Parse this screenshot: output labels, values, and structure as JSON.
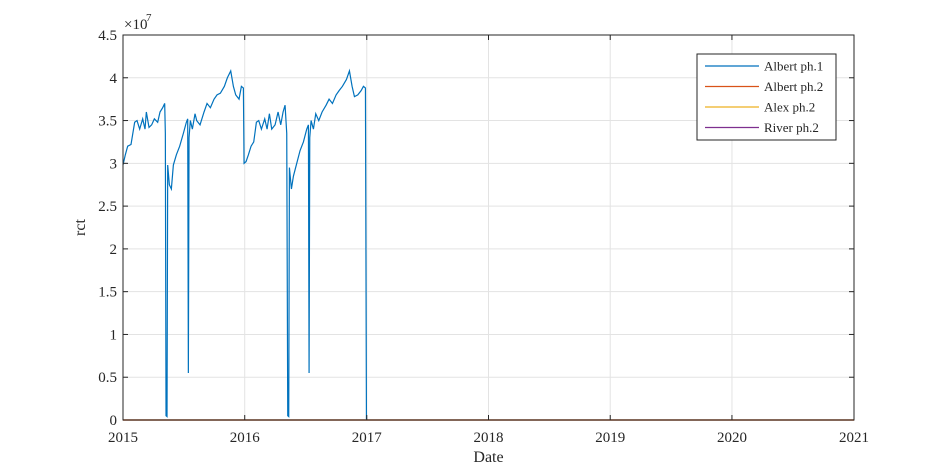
{
  "chart_data": {
    "type": "line",
    "xlabel": "Date",
    "ylabel": "rct",
    "y_exponent_label": "×10",
    "y_exponent_power": "7",
    "xlim": [
      "2015-01-01",
      "2021-01-01"
    ],
    "ylim": [
      0,
      45000000
    ],
    "x_ticks": [
      "2015",
      "2016",
      "2017",
      "2018",
      "2019",
      "2020",
      "2021"
    ],
    "y_ticks": [
      0,
      0.5,
      1,
      1.5,
      2,
      2.5,
      3,
      3.5,
      4,
      4.5
    ],
    "y_tick_labels": [
      "0",
      "0.5",
      "1",
      "1.5",
      "2",
      "2.5",
      "3",
      "3.5",
      "4",
      "4.5"
    ],
    "grid": true,
    "legend_position": "top-right",
    "series": [
      {
        "name": "Albert ph.1",
        "color": "#0072BD",
        "points": [
          [
            "2015-01-01",
            29800000
          ],
          [
            "2015-01-08",
            31000000
          ],
          [
            "2015-01-15",
            32000000
          ],
          [
            "2015-01-25",
            32200000
          ],
          [
            "2015-02-05",
            34800000
          ],
          [
            "2015-02-12",
            35000000
          ],
          [
            "2015-02-20",
            34000000
          ],
          [
            "2015-03-01",
            35200000
          ],
          [
            "2015-03-08",
            34000000
          ],
          [
            "2015-03-12",
            36000000
          ],
          [
            "2015-03-20",
            34200000
          ],
          [
            "2015-03-28",
            34500000
          ],
          [
            "2015-04-05",
            35200000
          ],
          [
            "2015-04-15",
            34800000
          ],
          [
            "2015-04-22",
            36000000
          ],
          [
            "2015-04-30",
            36500000
          ],
          [
            "2015-05-06",
            37000000
          ],
          [
            "2015-05-08",
            33500000
          ],
          [
            "2015-05-10",
            500000
          ],
          [
            "2015-05-13",
            400000
          ],
          [
            "2015-05-15",
            29800000
          ],
          [
            "2015-05-20",
            27500000
          ],
          [
            "2015-05-26",
            27000000
          ],
          [
            "2015-06-01",
            29800000
          ],
          [
            "2015-06-10",
            31000000
          ],
          [
            "2015-06-20",
            32000000
          ],
          [
            "2015-07-01",
            33500000
          ],
          [
            "2015-07-10",
            34800000
          ],
          [
            "2015-07-14",
            35200000
          ],
          [
            "2015-07-16",
            5500000
          ],
          [
            "2015-07-18",
            33000000
          ],
          [
            "2015-07-22",
            35000000
          ],
          [
            "2015-07-28",
            34000000
          ],
          [
            "2015-08-05",
            35800000
          ],
          [
            "2015-08-10",
            35000000
          ],
          [
            "2015-08-20",
            34500000
          ],
          [
            "2015-09-01",
            36000000
          ],
          [
            "2015-09-10",
            37000000
          ],
          [
            "2015-09-20",
            36500000
          ],
          [
            "2015-10-01",
            37500000
          ],
          [
            "2015-10-10",
            38000000
          ],
          [
            "2015-10-20",
            38200000
          ],
          [
            "2015-11-01",
            39000000
          ],
          [
            "2015-11-10",
            40000000
          ],
          [
            "2015-11-20",
            40800000
          ],
          [
            "2015-11-28",
            39000000
          ],
          [
            "2015-12-05",
            38000000
          ],
          [
            "2015-12-15",
            37500000
          ],
          [
            "2015-12-22",
            39000000
          ],
          [
            "2015-12-28",
            38800000
          ],
          [
            "2015-12-30",
            30000000
          ],
          [
            "2016-01-05",
            30200000
          ],
          [
            "2016-01-12",
            31000000
          ],
          [
            "2016-01-20",
            32000000
          ],
          [
            "2016-01-28",
            32500000
          ],
          [
            "2016-02-05",
            34800000
          ],
          [
            "2016-02-12",
            35000000
          ],
          [
            "2016-02-20",
            34000000
          ],
          [
            "2016-03-01",
            35200000
          ],
          [
            "2016-03-08",
            34000000
          ],
          [
            "2016-03-15",
            35800000
          ],
          [
            "2016-03-22",
            34000000
          ],
          [
            "2016-04-01",
            34500000
          ],
          [
            "2016-04-10",
            36000000
          ],
          [
            "2016-04-18",
            34500000
          ],
          [
            "2016-04-25",
            36000000
          ],
          [
            "2016-05-01",
            36800000
          ],
          [
            "2016-05-06",
            33500000
          ],
          [
            "2016-05-09",
            500000
          ],
          [
            "2016-05-12",
            400000
          ],
          [
            "2016-05-14",
            29500000
          ],
          [
            "2016-05-20",
            27000000
          ],
          [
            "2016-05-26",
            28500000
          ],
          [
            "2016-06-05",
            30000000
          ],
          [
            "2016-06-15",
            31500000
          ],
          [
            "2016-06-25",
            32500000
          ],
          [
            "2016-07-05",
            34000000
          ],
          [
            "2016-07-10",
            34500000
          ],
          [
            "2016-07-12",
            5500000
          ],
          [
            "2016-07-14",
            33000000
          ],
          [
            "2016-07-18",
            35000000
          ],
          [
            "2016-07-25",
            34000000
          ],
          [
            "2016-08-01",
            35800000
          ],
          [
            "2016-08-10",
            35000000
          ],
          [
            "2016-08-20",
            36000000
          ],
          [
            "2016-09-01",
            36800000
          ],
          [
            "2016-09-10",
            37500000
          ],
          [
            "2016-09-20",
            37000000
          ],
          [
            "2016-10-01",
            38000000
          ],
          [
            "2016-10-10",
            38500000
          ],
          [
            "2016-10-20",
            39000000
          ],
          [
            "2016-11-01",
            39800000
          ],
          [
            "2016-11-10",
            40800000
          ],
          [
            "2016-11-18",
            39000000
          ],
          [
            "2016-11-25",
            37800000
          ],
          [
            "2016-12-05",
            38000000
          ],
          [
            "2016-12-15",
            38500000
          ],
          [
            "2016-12-22",
            39000000
          ],
          [
            "2016-12-28",
            38800000
          ],
          [
            "2016-12-31",
            100000
          ]
        ]
      },
      {
        "name": "Albert ph.2",
        "color": "#D95319",
        "points": [
          [
            "2015-01-01",
            0
          ],
          [
            "2021-01-01",
            0
          ]
        ]
      },
      {
        "name": "Alex ph.2",
        "color": "#EDB120",
        "points": [
          [
            "2015-01-01",
            0
          ],
          [
            "2021-01-01",
            0
          ]
        ]
      },
      {
        "name": "River ph.2",
        "color": "#7E2F8E",
        "points": [
          [
            "2015-01-01",
            0
          ],
          [
            "2021-01-01",
            0
          ]
        ]
      }
    ]
  }
}
